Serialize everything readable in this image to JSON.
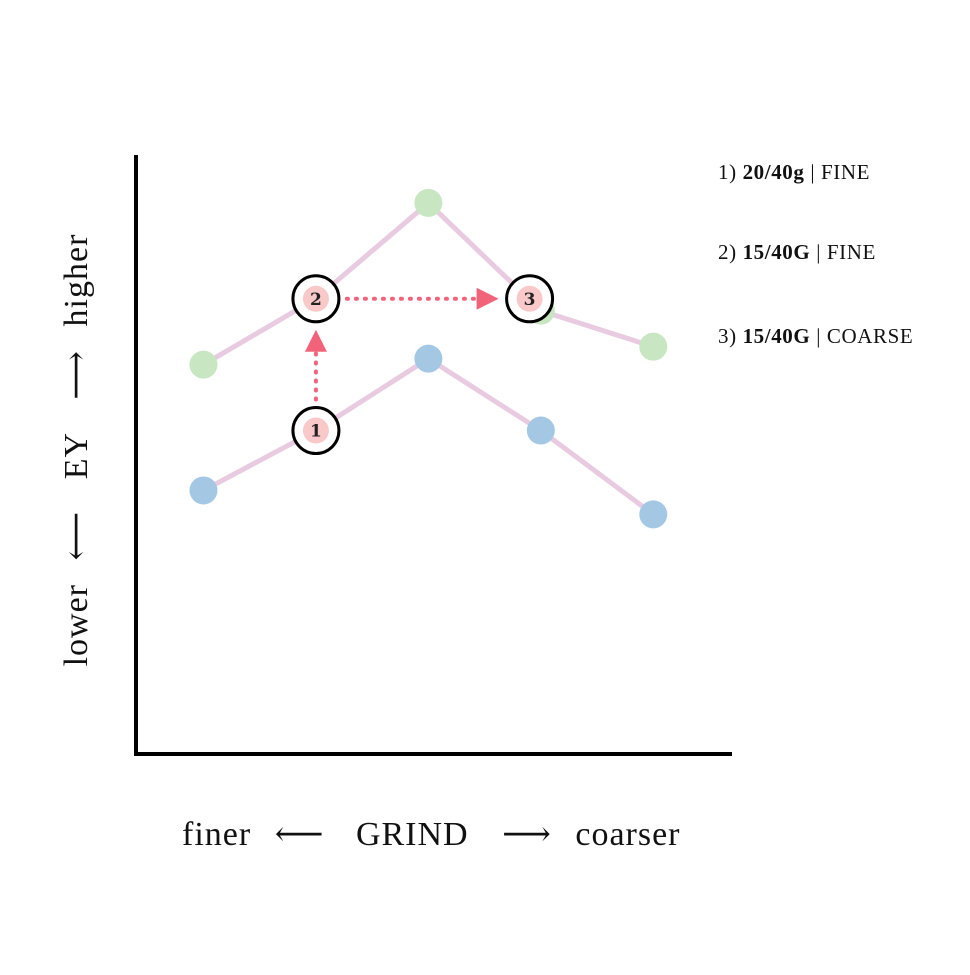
{
  "chart_data": {
    "type": "line",
    "x": [
      1,
      2,
      3,
      4,
      5
    ],
    "series": [
      {
        "values": [
          6.5,
          7.6,
          9.2,
          7.4,
          6.8
        ],
        "color": "#c8e6c2"
      },
      {
        "values": [
          4.4,
          5.4,
          6.6,
          5.4,
          4.0
        ],
        "color": "#a4c8e4"
      }
    ],
    "line_color": "#e8cbe0",
    "axis_color": "#000000",
    "xlim": [
      0.4,
      5.7
    ],
    "ylim": [
      0,
      10
    ],
    "grid": false,
    "steps": [
      {
        "label": "1",
        "x": 2,
        "y": 5.4
      },
      {
        "label": "2",
        "x": 2,
        "y": 7.6
      },
      {
        "label": "3",
        "x": 3.9,
        "y": 7.6
      }
    ],
    "step_fill": "#f9c9c9",
    "arrow_color": "#f2637a",
    "xlabel": {
      "left": "finer",
      "left_arrow": "⟵",
      "center": "GRIND",
      "right_arrow": "⟶",
      "right": "coarser"
    },
    "ylabel": {
      "left": "lower",
      "left_arrow": "⟵",
      "center": "EY",
      "right_arrow": "⟶",
      "right": "higher"
    }
  },
  "legend": [
    {
      "num": "1)",
      "dose": "20/40g",
      "sep": "|",
      "grind": "FINE"
    },
    {
      "num": "2)",
      "dose": "15/40G",
      "sep": "|",
      "grind": "FINE"
    },
    {
      "num": "3)",
      "dose": "15/40G",
      "sep": "|",
      "grind": "COARSE"
    }
  ]
}
